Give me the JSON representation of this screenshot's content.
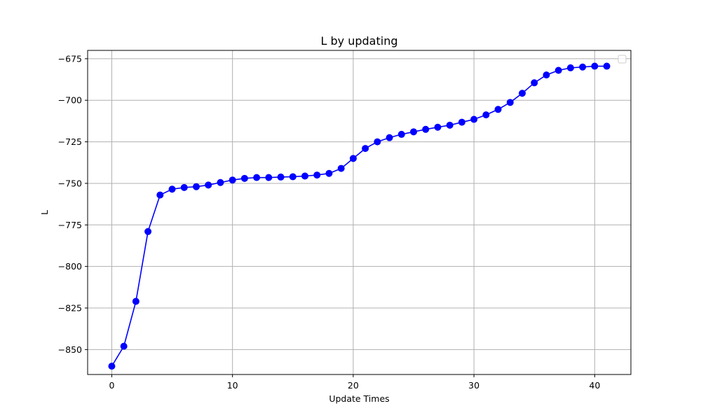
{
  "chart_data": {
    "type": "line",
    "title": "L by updating",
    "xlabel": "Update Times",
    "ylabel": "L",
    "xlim": [
      -2,
      43
    ],
    "ylim": [
      -865,
      -670
    ],
    "xticks": [
      0,
      10,
      20,
      30,
      40
    ],
    "yticks": [
      -850,
      -825,
      -800,
      -775,
      -750,
      -725,
      -700,
      -675
    ],
    "grid": true,
    "legend": "top-right",
    "series": [
      {
        "color": "#0000ff",
        "marker": "circle",
        "x": [
          0,
          1,
          2,
          3,
          4,
          5,
          6,
          7,
          8,
          9,
          10,
          11,
          12,
          13,
          14,
          15,
          16,
          17,
          18,
          19,
          20,
          21,
          22,
          23,
          24,
          25,
          26,
          27,
          28,
          29,
          30,
          31,
          32,
          33,
          34,
          35,
          36,
          37,
          38,
          39,
          40,
          41
        ],
        "y": [
          -860,
          -848,
          -821,
          -779,
          -757,
          -753.5,
          -752.5,
          -752,
          -751,
          -749.5,
          -748,
          -747,
          -746.5,
          -746.5,
          -746.2,
          -746,
          -745.6,
          -745,
          -744,
          -741,
          -735,
          -729,
          -725,
          -722.5,
          -720.5,
          -719,
          -717.5,
          -716.2,
          -715,
          -713.2,
          -711.5,
          -708.8,
          -705.5,
          -701.3,
          -695.8,
          -689.5,
          -684.8,
          -682,
          -680.5,
          -680,
          -679.5,
          -679.5
        ]
      }
    ]
  }
}
